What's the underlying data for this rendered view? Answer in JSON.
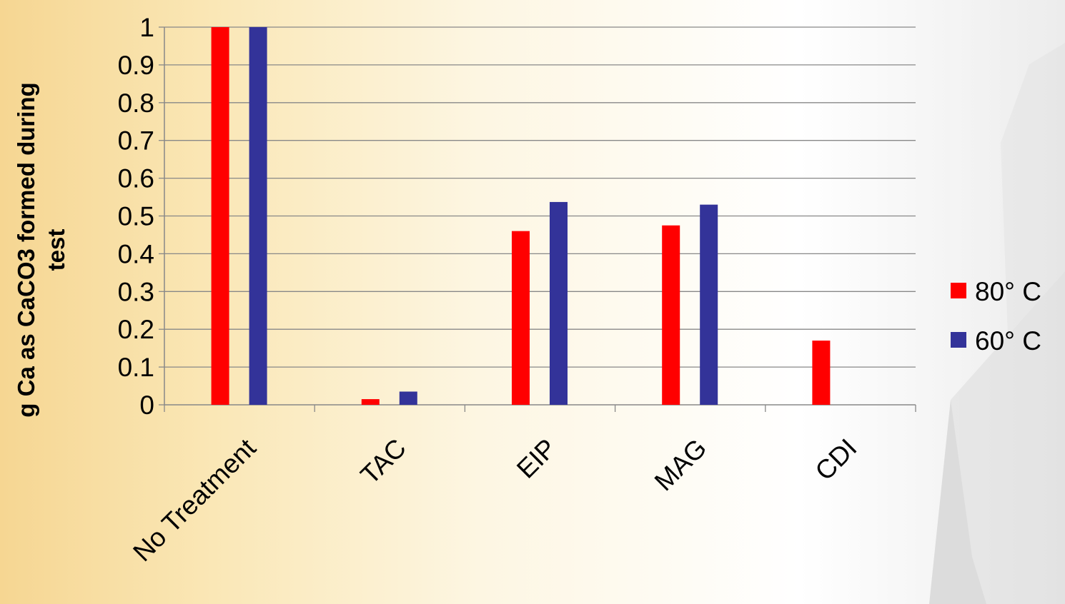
{
  "chart_data": {
    "type": "bar",
    "title": "",
    "xlabel": "",
    "ylabel": [
      "g Ca as CaCO3 formed during",
      "test"
    ],
    "categories": [
      "No Treatment",
      "TAC",
      "EIP",
      "MAG",
      "CDI"
    ],
    "series": [
      {
        "name": "80° C",
        "color": "#ff0000",
        "values": [
          1.0,
          0.015,
          0.46,
          0.475,
          0.17
        ]
      },
      {
        "name": "60° C",
        "color": "#333399",
        "values": [
          1.0,
          0.035,
          0.537,
          0.53,
          0.0
        ]
      }
    ],
    "ylim": [
      0,
      1
    ],
    "yticks": [
      "0",
      "0.1",
      "0.2",
      "0.3",
      "0.4",
      "0.5",
      "0.6",
      "0.7",
      "0.8",
      "0.9",
      "1"
    ],
    "grid": true,
    "legend_position": "right"
  }
}
